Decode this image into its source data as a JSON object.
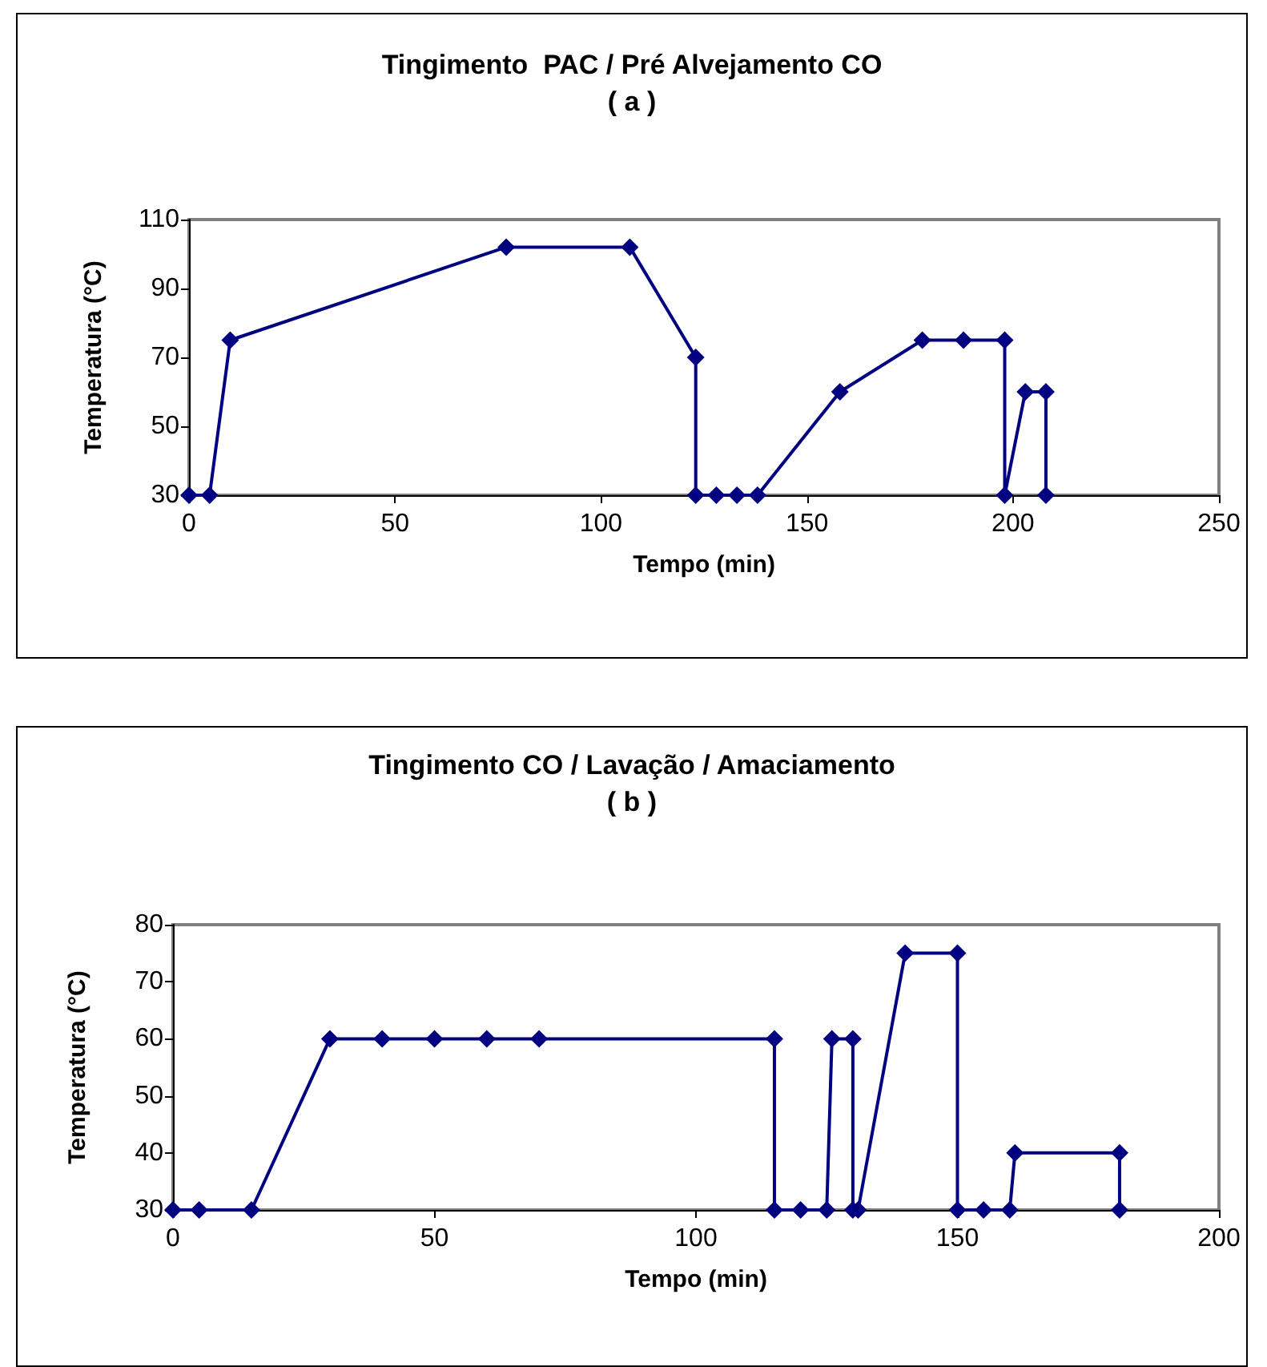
{
  "chart_data": [
    {
      "type": "line",
      "title": "Tingimento  PAC / Pré Alvejamento CO",
      "subtitle": "( a )",
      "xlabel": "Tempo (min)",
      "ylabel": "Temperatura (°C)",
      "x": [
        0,
        5,
        10,
        77,
        107,
        123,
        123,
        128,
        133,
        138,
        158,
        178,
        188,
        198,
        198,
        203,
        208,
        208
      ],
      "series": [
        {
          "color": "#000080",
          "values": [
            30,
            30,
            75,
            102,
            102,
            70,
            30,
            30,
            30,
            30,
            60,
            75,
            75,
            75,
            30,
            60,
            60,
            30
          ]
        }
      ],
      "xlim": [
        0,
        250
      ],
      "xticks": [
        0,
        50,
        100,
        150,
        200,
        250
      ],
      "ylim": [
        30,
        110
      ],
      "yticks": [
        30,
        50,
        70,
        90,
        110
      ],
      "grid": false,
      "marker": "diamond",
      "line_style": "solid"
    },
    {
      "type": "line",
      "title": "Tingimento CO / Lavação / Amaciamento",
      "subtitle": "( b )",
      "xlabel": "Tempo (min)",
      "ylabel": "Temperatura (°C)",
      "x": [
        0,
        5,
        15,
        30,
        40,
        50,
        60,
        70,
        115,
        115,
        120,
        125,
        126,
        130,
        130,
        131,
        140,
        150,
        150,
        155,
        160,
        161,
        181,
        181
      ],
      "series": [
        {
          "color": "#000080",
          "values": [
            30,
            30,
            30,
            60,
            60,
            60,
            60,
            60,
            60,
            30,
            30,
            30,
            60,
            60,
            30,
            30,
            75,
            75,
            30,
            30,
            30,
            40,
            40,
            30
          ]
        }
      ],
      "xlim": [
        0,
        200
      ],
      "xticks": [
        0,
        50,
        100,
        150,
        200
      ],
      "ylim": [
        30,
        80
      ],
      "yticks": [
        30,
        40,
        50,
        60,
        70,
        80
      ],
      "grid": false,
      "marker": "diamond",
      "line_style": "solid"
    }
  ]
}
